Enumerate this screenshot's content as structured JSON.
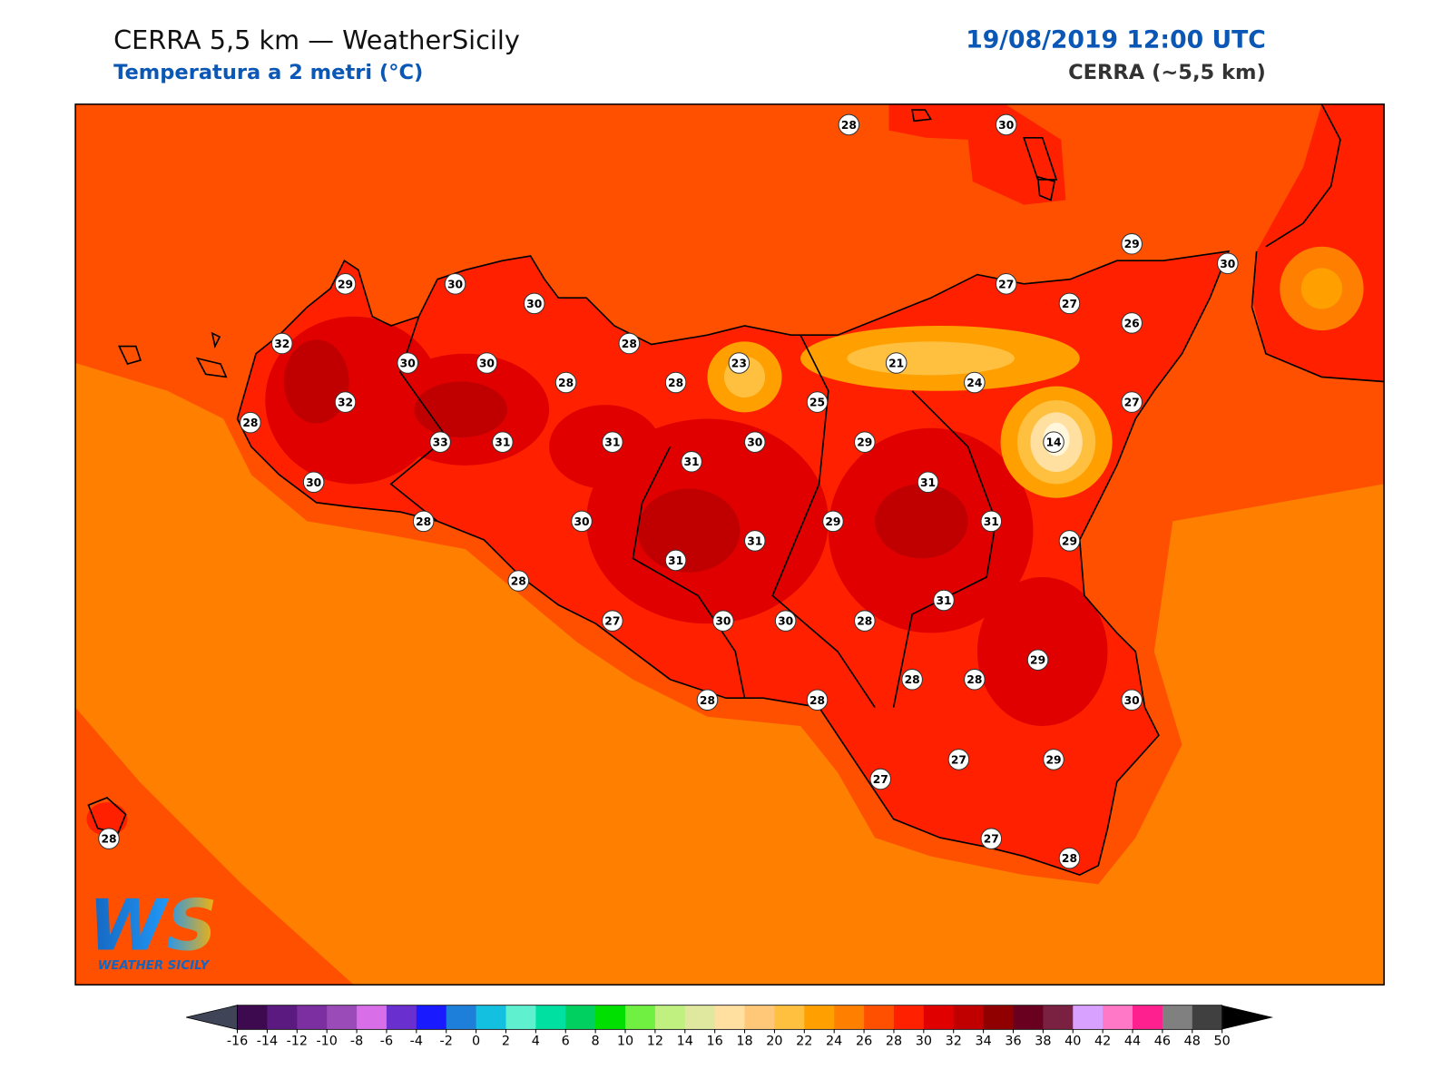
{
  "header": {
    "title": "CERRA 5,5 km — WeatherSicily",
    "subtitle": "Temperatura a 2 metri (°C)",
    "datetime": "19/08/2019 12:00 UTC",
    "model": "CERRA (~5,5 km)"
  },
  "stations": [
    28,
    30,
    29,
    30,
    29,
    30,
    27,
    30,
    27,
    26,
    32,
    28,
    30,
    30,
    23,
    21,
    28,
    28,
    24,
    32,
    25,
    27,
    28,
    33,
    31,
    31,
    30,
    29,
    14,
    31,
    30,
    31,
    28,
    30,
    29,
    31,
    29,
    31,
    31,
    28,
    31,
    27,
    30,
    30,
    28,
    29,
    28,
    28,
    30,
    28,
    28,
    27,
    29,
    27,
    27,
    28,
    28
  ],
  "colorbar": {
    "ticks": [
      -16,
      -14,
      -12,
      -10,
      -8,
      -6,
      -4,
      -2,
      0,
      2,
      4,
      6,
      8,
      10,
      12,
      14,
      16,
      18,
      20,
      22,
      24,
      26,
      28,
      30,
      32,
      34,
      36,
      38,
      40,
      42,
      44,
      46,
      48,
      50
    ],
    "colors": [
      "#3d0a4f",
      "#5a1a80",
      "#7b2fa0",
      "#9b4bb8",
      "#d86ee8",
      "#6a2fcf",
      "#1a1aff",
      "#1e7fdb",
      "#14c0e0",
      "#5ff0d0",
      "#00e0a0",
      "#00d060",
      "#00e000",
      "#70f040",
      "#c0f080",
      "#e0e8a0",
      "#ffe0a0",
      "#ffc878",
      "#ffc040",
      "#ffa000",
      "#ff8000",
      "#ff5000",
      "#ff2000",
      "#e00000",
      "#c00000",
      "#900000",
      "#6a0020",
      "#7a2040",
      "#d8a0ff",
      "#ff78c8",
      "#ff2090",
      "#808080",
      "#404040"
    ],
    "under_color": "#3f4556",
    "over_color": "#000000"
  },
  "logo": {
    "text": "WS",
    "caption": "WEATHER SICILY"
  }
}
